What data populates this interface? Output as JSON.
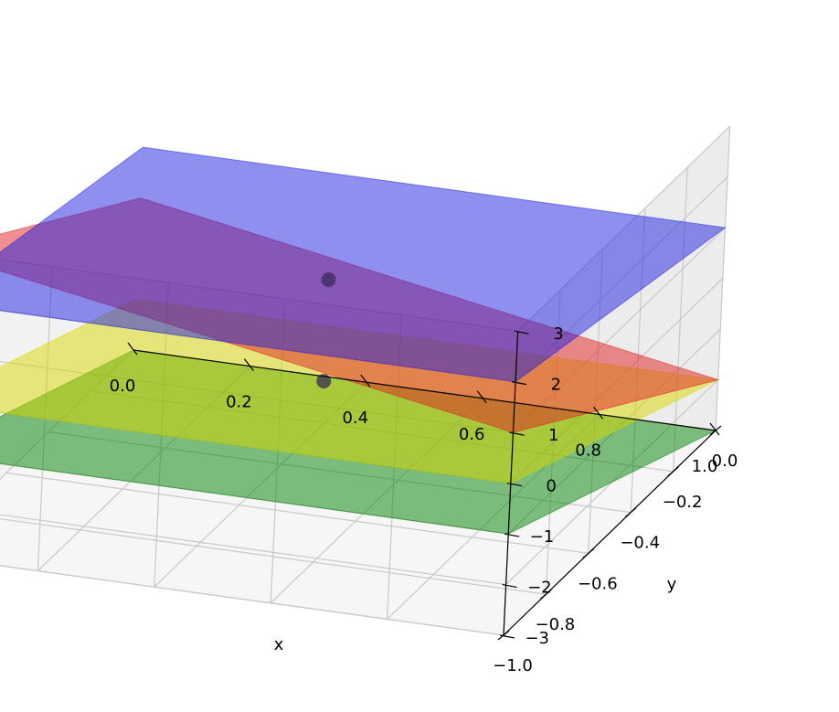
{
  "chart_data": {
    "type": "surface3d",
    "title": "",
    "xlabel": "x",
    "ylabel": "y",
    "zlabel": "",
    "xlim": [
      0.0,
      1.0
    ],
    "ylim": [
      -1.0,
      0.0
    ],
    "zlim": [
      -3.0,
      3.0
    ],
    "x_ticks": [
      "0.0",
      "0.2",
      "0.4",
      "0.6",
      "0.8",
      "1.0"
    ],
    "y_ticks": [
      "0.0",
      "−0.2",
      "−0.4",
      "−0.6",
      "−0.8",
      "−1.0"
    ],
    "z_ticks": [
      "3",
      "2",
      "1",
      "0",
      "−1",
      "−2",
      "−3"
    ],
    "grid": true,
    "surfaces": [
      {
        "color": "#008000",
        "corners_xyz": [
          [
            0,
            0,
            -3.0
          ],
          [
            1,
            0,
            -3.0
          ],
          [
            1,
            -1,
            -1.0
          ],
          [
            0,
            -1,
            -1.0
          ]
        ]
      },
      {
        "color": "#d8d800",
        "corners_xyz": [
          [
            0,
            0,
            -2.0
          ],
          [
            1,
            0,
            -2.0
          ],
          [
            1,
            -1,
            0.0
          ],
          [
            0,
            -1,
            0.0
          ]
        ]
      },
      {
        "color": "#e02020",
        "corners_xyz": [
          [
            0,
            0,
            0.0
          ],
          [
            1,
            0,
            -2.0
          ],
          [
            1,
            -1,
            1.0
          ],
          [
            0,
            -1,
            3.0
          ]
        ]
      },
      {
        "color": "#2020e0",
        "corners_xyz": [
          [
            0,
            0,
            1.0
          ],
          [
            1,
            0,
            1.0
          ],
          [
            1,
            -1,
            2.0
          ],
          [
            0,
            -1,
            2.0
          ]
        ]
      }
    ],
    "points": [
      {
        "x": 0.5,
        "y": -0.5,
        "z": 1.2
      },
      {
        "x": 0.5,
        "y": -0.5,
        "z": -0.8
      }
    ]
  }
}
